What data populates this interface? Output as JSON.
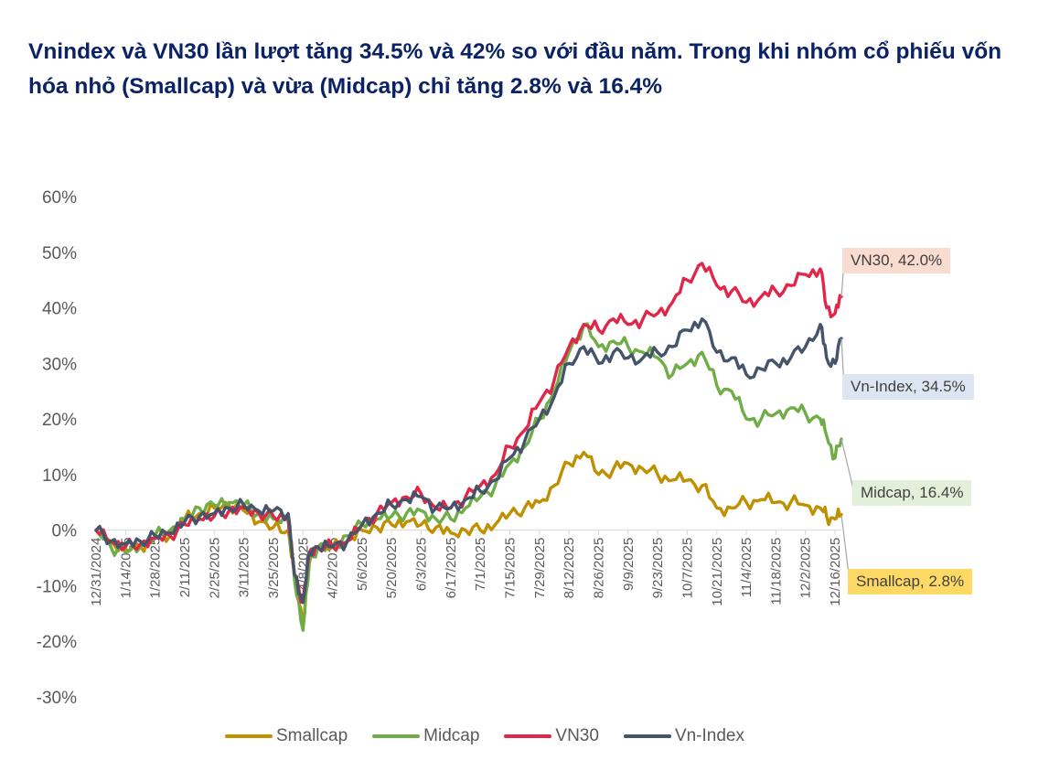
{
  "title": "Vnindex và VN30 lần lượt tăng 34.5% và 42% so với đầu năm. Trong khi nhóm cổ phiếu vốn hóa nhỏ (Smallcap) và vừa (Midcap) chỉ tăng 2.8% và 16.4%",
  "chart_data": {
    "type": "line",
    "title": "Vnindex và VN30 lần lượt tăng 34.5% và 42% so với đầu năm. Trong khi nhóm cổ phiếu vốn hóa nhỏ (Smallcap) và vừa (Midcap) chỉ tăng 2.8% và 16.4%",
    "xlabel": "",
    "ylabel": "",
    "ylim": [
      -30,
      60
    ],
    "xlim": [
      "12/31/2024",
      "12/19/2025"
    ],
    "y_tick_labels": [
      "60%",
      "50%",
      "40%",
      "30%",
      "20%",
      "10%",
      "0%",
      "-10%",
      "-20%",
      "-30%"
    ],
    "y_ticks": [
      60,
      50,
      40,
      30,
      20,
      10,
      0,
      -10,
      -20,
      -30
    ],
    "x_tick_labels": [
      "12/31/2024",
      "1/14/2025",
      "1/28/2025",
      "2/11/2025",
      "2/25/2025",
      "3/11/2025",
      "3/25/2025",
      "4/8/2025",
      "4/22/2025",
      "5/6/2025",
      "5/20/2025",
      "6/3/2025",
      "6/17/2025",
      "7/1/2025",
      "7/15/2025",
      "7/29/2025",
      "8/12/2025",
      "8/26/2025",
      "9/9/2025",
      "9/23/2025",
      "10/7/2025",
      "10/21/2025",
      "11/4/2025",
      "11/18/2025",
      "12/2/2025",
      "12/16/2025"
    ],
    "x": [
      "12/31/2024",
      "1/7/2025",
      "1/14/2025",
      "1/21/2025",
      "1/28/2025",
      "2/4/2025",
      "2/11/2025",
      "2/18/2025",
      "2/25/2025",
      "3/4/2025",
      "3/11/2025",
      "3/18/2025",
      "3/25/2025",
      "4/1/2025",
      "4/4/2025",
      "4/8/2025",
      "4/11/2025",
      "4/15/2025",
      "4/22/2025",
      "4/29/2025",
      "5/6/2025",
      "5/13/2025",
      "5/20/2025",
      "5/27/2025",
      "6/3/2025",
      "6/10/2025",
      "6/17/2025",
      "6/24/2025",
      "7/1/2025",
      "7/8/2025",
      "7/15/2025",
      "7/22/2025",
      "7/29/2025",
      "8/5/2025",
      "8/12/2025",
      "8/19/2025",
      "8/26/2025",
      "9/2/2025",
      "9/9/2025",
      "9/16/2025",
      "9/23/2025",
      "9/30/2025",
      "10/7/2025",
      "10/14/2025",
      "10/21/2025",
      "10/28/2025",
      "11/4/2025",
      "11/11/2025",
      "11/18/2025",
      "11/25/2025",
      "12/2/2025",
      "12/9/2025",
      "12/12/2025",
      "12/16/2025",
      "12/19/2025"
    ],
    "series": [
      {
        "name": "Smallcap",
        "color": "#bf9000",
        "values": [
          0,
          -2,
          -3.5,
          -3,
          -1.5,
          -1,
          2,
          3,
          4,
          4.5,
          3.5,
          1.5,
          0.5,
          0,
          -8,
          -17,
          -5,
          -3,
          -3,
          -2,
          0,
          0.5,
          1,
          1.5,
          1,
          0.5,
          -0.5,
          0,
          0,
          1,
          3,
          4,
          5,
          8,
          12,
          14,
          10,
          11,
          12,
          11,
          10,
          9,
          9,
          8,
          4,
          4,
          5,
          5.5,
          5,
          5,
          4.5,
          4,
          2.5,
          2,
          2.8
        ]
      },
      {
        "name": "Midcap",
        "color": "#70ad47",
        "values": [
          0,
          -3,
          -4,
          -3,
          -1,
          0,
          2,
          4,
          4.5,
          5,
          4.5,
          3,
          2,
          2,
          -9,
          -18,
          -6,
          -3,
          -3,
          -1,
          1,
          2,
          2.5,
          3,
          3.5,
          2,
          2,
          4,
          6,
          8,
          12,
          15,
          20,
          25,
          32,
          37,
          33,
          34,
          33,
          32,
          31,
          28,
          30,
          32,
          26,
          25,
          20,
          20,
          21,
          22,
          21,
          20,
          17,
          13,
          16.4
        ]
      },
      {
        "name": "VN30",
        "color": "#e0274a",
        "values": [
          0,
          -2,
          -3,
          -2.5,
          -1.5,
          -1,
          1,
          2,
          2.5,
          3.5,
          4,
          3,
          2.5,
          2,
          -8,
          -13,
          -4,
          -3,
          -3,
          -2,
          1,
          3,
          5,
          6,
          6.5,
          4,
          4,
          6,
          8,
          10,
          15,
          18,
          23,
          27,
          33,
          37,
          36,
          38,
          37,
          38,
          39,
          41,
          45,
          48,
          44,
          43,
          41,
          42,
          43,
          44,
          46,
          47,
          40,
          39,
          42.0
        ]
      },
      {
        "name": "Vn-Index",
        "color": "#44546a",
        "values": [
          0,
          -2,
          -2.5,
          -2,
          -1,
          -0.5,
          1.5,
          2.5,
          3,
          4,
          4.5,
          3.5,
          3.5,
          3,
          -8,
          -13,
          -4,
          -3,
          -3,
          -2,
          1,
          3,
          4.5,
          5.5,
          6,
          4,
          4,
          5.5,
          7,
          9,
          13,
          16,
          20,
          24,
          30,
          33,
          30,
          32,
          31,
          31,
          32,
          33,
          36,
          38,
          32,
          31,
          28,
          29,
          30,
          31,
          33,
          37,
          31,
          30,
          34.5
        ]
      }
    ],
    "end_labels": [
      {
        "series": "VN30",
        "text": "VN30, 42.0%",
        "fill": "#f8dcd0"
      },
      {
        "series": "Vn-Index",
        "text": "Vn-Index, 34.5%",
        "fill": "#dce6f2"
      },
      {
        "series": "Midcap",
        "text": "Midcap, 16.4%",
        "fill": "#e2efd9"
      },
      {
        "series": "Smallcap",
        "text": "Smallcap, 2.8%",
        "fill": "#ffd966"
      }
    ],
    "grid": false,
    "legend_position": "bottom"
  }
}
